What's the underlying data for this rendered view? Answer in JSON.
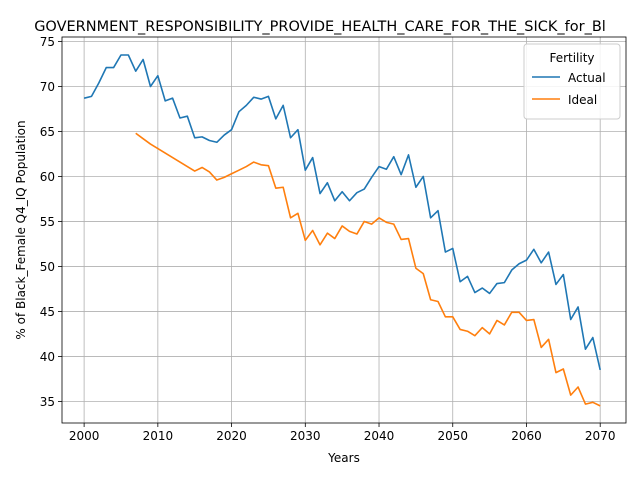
{
  "chart_data": {
    "type": "line",
    "title": "GOVERNMENT_RESPONSIBILITY_PROVIDE_HEALTH_CARE_FOR_THE_SICK_for_Bl",
    "xlabel": "Years",
    "ylabel": "% of Black_Female Q4_IQ Population",
    "xlim": [
      1997,
      2073.5
    ],
    "ylim": [
      32.6,
      75.5
    ],
    "xticks": [
      2000,
      2010,
      2020,
      2030,
      2040,
      2050,
      2060,
      2070
    ],
    "yticks": [
      35,
      40,
      45,
      50,
      55,
      60,
      65,
      70,
      75
    ],
    "grid": true,
    "legend": {
      "title": "Fertility",
      "placement": "upper right"
    },
    "series": [
      {
        "name": "Actual",
        "color": "#1f77b4",
        "x": [
          2000,
          2001,
          2002,
          2003,
          2004,
          2005,
          2006,
          2007,
          2008,
          2009,
          2010,
          2011,
          2012,
          2013,
          2014,
          2015,
          2016,
          2017,
          2018,
          2019,
          2020,
          2021,
          2022,
          2023,
          2024,
          2025,
          2026,
          2027,
          2028,
          2029,
          2030,
          2031,
          2032,
          2033,
          2034,
          2035,
          2036,
          2037,
          2038,
          2039,
          2040,
          2041,
          2042,
          2043,
          2044,
          2045,
          2046,
          2047,
          2048,
          2049,
          2050,
          2051,
          2052,
          2053,
          2054,
          2055,
          2056,
          2057,
          2058,
          2059,
          2060,
          2061,
          2062,
          2063,
          2064,
          2065,
          2066,
          2067,
          2068,
          2069,
          2070
        ],
        "values": [
          68.7,
          68.9,
          70.4,
          72.1,
          72.1,
          73.5,
          73.5,
          71.7,
          73.0,
          70.0,
          71.2,
          68.4,
          68.7,
          66.5,
          66.7,
          64.3,
          64.4,
          64.0,
          63.8,
          64.6,
          65.2,
          67.2,
          67.9,
          68.8,
          68.6,
          68.9,
          66.4,
          67.9,
          64.3,
          65.2,
          60.7,
          62.1,
          58.1,
          59.3,
          57.3,
          58.3,
          57.3,
          58.2,
          58.6,
          59.9,
          61.1,
          60.8,
          62.2,
          60.2,
          62.4,
          58.8,
          60.0,
          55.4,
          56.2,
          51.6,
          52.0,
          48.3,
          48.9,
          47.1,
          47.6,
          47.0,
          48.1,
          48.2,
          49.6,
          50.3,
          50.7,
          51.9,
          50.4,
          51.6,
          48.0,
          49.1,
          44.1,
          45.5,
          40.8,
          42.1,
          38.5
        ]
      },
      {
        "name": "Ideal",
        "color": "#ff7f0e",
        "x": [
          2007,
          2008,
          2009,
          2010,
          2011,
          2012,
          2013,
          2014,
          2015,
          2016,
          2017,
          2018,
          2019,
          2020,
          2021,
          2022,
          2023,
          2024,
          2025,
          2026,
          2027,
          2028,
          2029,
          2030,
          2031,
          2032,
          2033,
          2034,
          2035,
          2036,
          2037,
          2038,
          2039,
          2040,
          2041,
          2042,
          2043,
          2044,
          2045,
          2046,
          2047,
          2048,
          2049,
          2050,
          2051,
          2052,
          2053,
          2054,
          2055,
          2056,
          2057,
          2058,
          2059,
          2060,
          2061,
          2062,
          2063,
          2064,
          2065,
          2066,
          2067,
          2068,
          2069,
          2070
        ],
        "values": [
          64.8,
          64.2,
          63.6,
          63.1,
          62.6,
          62.1,
          61.6,
          61.1,
          60.6,
          61.0,
          60.5,
          59.6,
          59.9,
          60.3,
          60.7,
          61.1,
          61.6,
          61.3,
          61.2,
          58.7,
          58.8,
          55.4,
          55.9,
          52.9,
          54.0,
          52.4,
          53.7,
          53.1,
          54.5,
          53.9,
          53.6,
          55.0,
          54.7,
          55.4,
          54.9,
          54.7,
          53.0,
          53.1,
          49.8,
          49.2,
          46.3,
          46.1,
          44.4,
          44.4,
          43.0,
          42.8,
          42.3,
          43.2,
          42.5,
          44.0,
          43.5,
          44.9,
          44.9,
          44.0,
          44.1,
          41.0,
          41.9,
          38.2,
          38.6,
          35.7,
          36.6,
          34.7,
          34.9,
          34.5
        ]
      }
    ]
  }
}
